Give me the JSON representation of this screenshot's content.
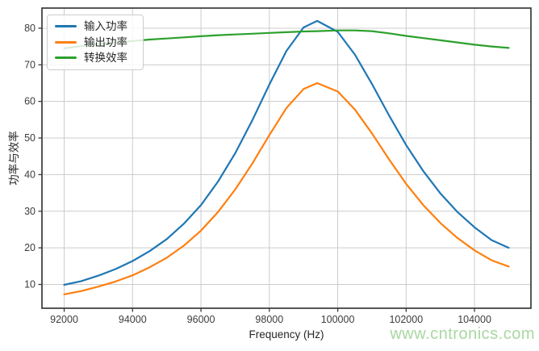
{
  "figure": {
    "background": "#ffffff"
  },
  "watermark": {
    "text": "www.cntronics.com",
    "color": "#a9d7a2"
  },
  "chart_data": {
    "type": "line",
    "title": "",
    "xlabel": "Frequency (Hz)",
    "ylabel": "功率与效率",
    "xlim": [
      91350,
      105650
    ],
    "ylim": [
      3.5,
      85.5
    ],
    "grid": true,
    "grid_color": "#cccccc",
    "axis_color": "#3a3a3a",
    "tick_label_color": "#3c3c3c",
    "legend_position": "upper-left",
    "x_ticks": [
      92000,
      94000,
      96000,
      98000,
      100000,
      102000,
      104000
    ],
    "x_tick_labels": [
      "92000",
      "94000",
      "96000",
      "98000",
      "100000",
      "102000",
      "104000"
    ],
    "y_ticks": [
      10,
      20,
      30,
      40,
      50,
      60,
      70,
      80
    ],
    "y_tick_labels": [
      "10",
      "20",
      "30",
      "40",
      "50",
      "60",
      "70",
      "80"
    ],
    "x": [
      92000,
      92500,
      93000,
      93500,
      94000,
      94500,
      95000,
      95500,
      96000,
      96500,
      97000,
      97500,
      98000,
      98500,
      99000,
      99400,
      100000,
      100500,
      101000,
      101500,
      102000,
      102500,
      103000,
      103500,
      104000,
      104500,
      105000
    ],
    "series": [
      {
        "name": "输入功率",
        "color": "#1f77b4",
        "values": [
          9.9,
          10.9,
          12.4,
          14.2,
          16.4,
          19.1,
          22.4,
          26.6,
          31.7,
          38.1,
          45.8,
          54.8,
          64.6,
          73.8,
          80.2,
          82.0,
          79.0,
          72.8,
          64.8,
          56.2,
          48.1,
          41.0,
          34.9,
          29.8,
          25.6,
          22.1,
          20.0
        ]
      },
      {
        "name": "输出功率",
        "color": "#ff7f0e",
        "values": [
          7.3,
          8.2,
          9.4,
          10.8,
          12.5,
          14.7,
          17.3,
          20.6,
          24.7,
          29.8,
          35.9,
          43.0,
          50.8,
          58.2,
          63.4,
          65.0,
          62.7,
          57.8,
          51.3,
          44.2,
          37.5,
          31.7,
          26.8,
          22.7,
          19.3,
          16.6,
          14.9
        ]
      },
      {
        "name": "转换效率",
        "color": "#2ca02c",
        "values": [
          74.5,
          75.1,
          75.7,
          76.1,
          76.5,
          76.9,
          77.2,
          77.5,
          77.8,
          78.1,
          78.3,
          78.5,
          78.7,
          78.9,
          79.1,
          79.2,
          79.4,
          79.4,
          79.2,
          78.6,
          77.9,
          77.3,
          76.7,
          76.1,
          75.5,
          75.0,
          74.6
        ]
      }
    ]
  }
}
